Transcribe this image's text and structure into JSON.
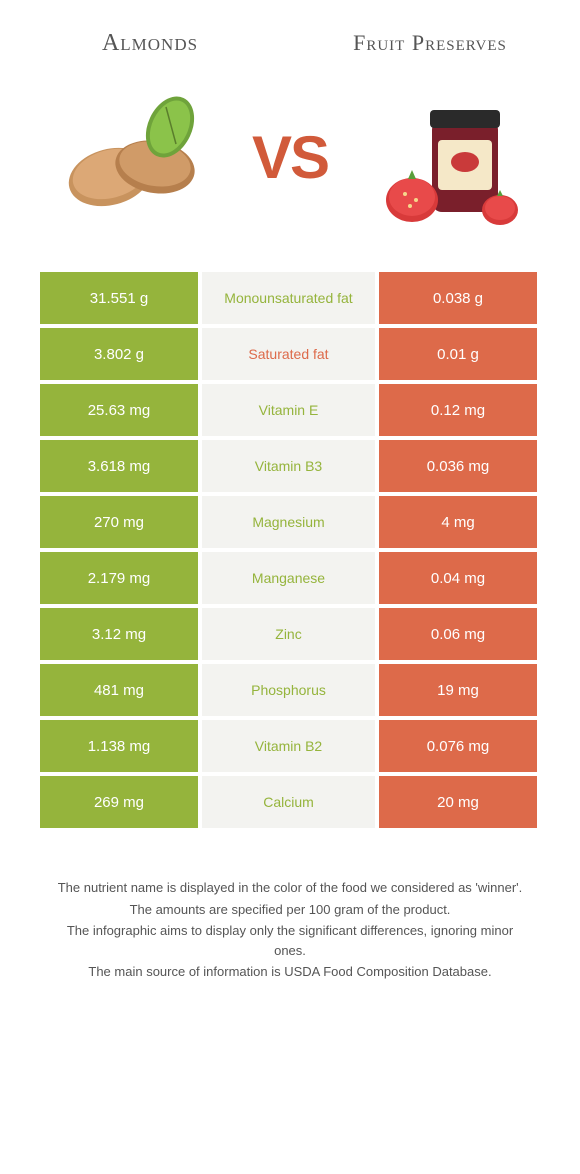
{
  "titles": {
    "left": "Almonds",
    "right": "Fruit Preserves",
    "vs": "VS"
  },
  "colors": {
    "almond": "#95b43c",
    "preserve": "#dd6a4a",
    "mid_bg": "#f3f3f0",
    "text_gray": "#555555"
  },
  "rows": [
    {
      "left": "31.551 g",
      "label": "Monounsaturated fat",
      "right": "0.038 g",
      "winner": "almond"
    },
    {
      "left": "3.802 g",
      "label": "Saturated fat",
      "right": "0.01 g",
      "winner": "preserve"
    },
    {
      "left": "25.63 mg",
      "label": "Vitamin E",
      "right": "0.12 mg",
      "winner": "almond"
    },
    {
      "left": "3.618 mg",
      "label": "Vitamin B3",
      "right": "0.036 mg",
      "winner": "almond"
    },
    {
      "left": "270 mg",
      "label": "Magnesium",
      "right": "4 mg",
      "winner": "almond"
    },
    {
      "left": "2.179 mg",
      "label": "Manganese",
      "right": "0.04 mg",
      "winner": "almond"
    },
    {
      "left": "3.12 mg",
      "label": "Zinc",
      "right": "0.06 mg",
      "winner": "almond"
    },
    {
      "left": "481 mg",
      "label": "Phosphorus",
      "right": "19 mg",
      "winner": "almond"
    },
    {
      "left": "1.138 mg",
      "label": "Vitamin B2",
      "right": "0.076 mg",
      "winner": "almond"
    },
    {
      "left": "269 mg",
      "label": "Calcium",
      "right": "20 mg",
      "winner": "almond"
    }
  ],
  "footer": [
    "The nutrient name is displayed in the color of the food we considered as 'winner'.",
    "The amounts are specified per 100 gram of the product.",
    "The infographic aims to display only the significant differences, ignoring minor ones.",
    "The main source of information is USDA Food Composition Database."
  ]
}
